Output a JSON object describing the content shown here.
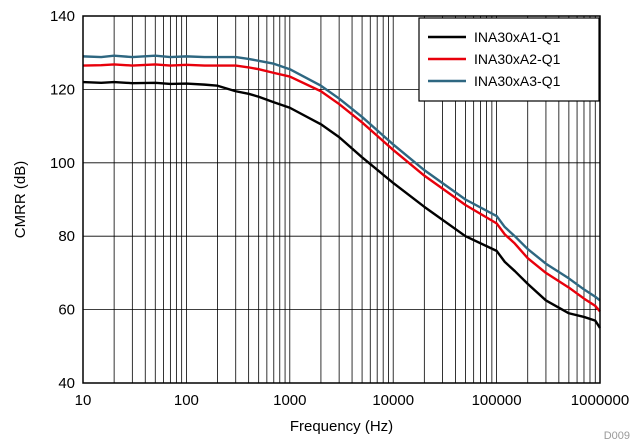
{
  "chart_data": {
    "type": "line",
    "xlabel": "Frequency (Hz)",
    "ylabel": "CMRR (dB)",
    "xscale": "log",
    "xlim": [
      10,
      1000000
    ],
    "ylim": [
      40,
      140
    ],
    "x_ticks": [
      10,
      100,
      1000,
      10000,
      100000,
      1000000
    ],
    "x_tick_labels": [
      "10",
      "100",
      "1000",
      "10000",
      "100000",
      "1000000"
    ],
    "y_ticks": [
      40,
      60,
      80,
      100,
      120,
      140
    ],
    "y_tick_labels": [
      "40",
      "60",
      "80",
      "100",
      "120",
      "140"
    ],
    "grid": true,
    "legend_position": "top-right",
    "figure_id": "D009",
    "series": [
      {
        "name": "INA30xA1-Q1",
        "color": "#000000",
        "x": [
          10,
          15,
          20,
          30,
          50,
          70,
          100,
          150,
          200,
          300,
          400,
          500,
          700,
          1000,
          2000,
          3000,
          5000,
          10000,
          20000,
          50000,
          100000,
          120000,
          150000,
          200000,
          300000,
          500000,
          700000,
          900000,
          1000000
        ],
        "y": [
          122,
          121.8,
          122,
          121.7,
          121.8,
          121.5,
          121.6,
          121.3,
          121,
          119.5,
          118.8,
          118,
          116.5,
          115,
          110.5,
          107,
          101.5,
          94.5,
          88,
          80,
          76,
          73,
          70.5,
          67,
          62.5,
          59,
          58,
          57,
          55
        ]
      },
      {
        "name": "INA30xA2-Q1",
        "color": "#e8000b",
        "x": [
          10,
          15,
          20,
          30,
          50,
          70,
          100,
          150,
          200,
          300,
          400,
          500,
          700,
          1000,
          2000,
          3000,
          5000,
          10000,
          20000,
          50000,
          100000,
          120000,
          150000,
          200000,
          300000,
          500000,
          700000,
          900000,
          1000000
        ],
        "y": [
          126.5,
          126.6,
          126.8,
          126.5,
          126.8,
          126.5,
          126.7,
          126.5,
          126.5,
          126.5,
          126,
          125.5,
          124.5,
          123.5,
          119.5,
          116,
          111,
          103.5,
          96.5,
          88.5,
          83.5,
          80.5,
          78,
          74,
          70,
          66,
          63,
          61,
          59.5
        ]
      },
      {
        "name": "INA30xA3-Q1",
        "color": "#2e6781",
        "x": [
          10,
          15,
          20,
          30,
          50,
          70,
          100,
          150,
          200,
          300,
          400,
          500,
          700,
          1000,
          2000,
          3000,
          5000,
          10000,
          20000,
          50000,
          100000,
          120000,
          150000,
          200000,
          300000,
          500000,
          700000,
          900000,
          1000000
        ],
        "y": [
          129,
          128.8,
          129.2,
          128.8,
          129.2,
          128.8,
          129,
          128.8,
          128.8,
          128.8,
          128.3,
          127.8,
          127,
          125.5,
          121,
          117.5,
          112.5,
          105,
          98,
          90,
          85.5,
          82.5,
          80,
          76.5,
          72.5,
          68.5,
          65.5,
          63.5,
          62.5
        ]
      }
    ]
  }
}
